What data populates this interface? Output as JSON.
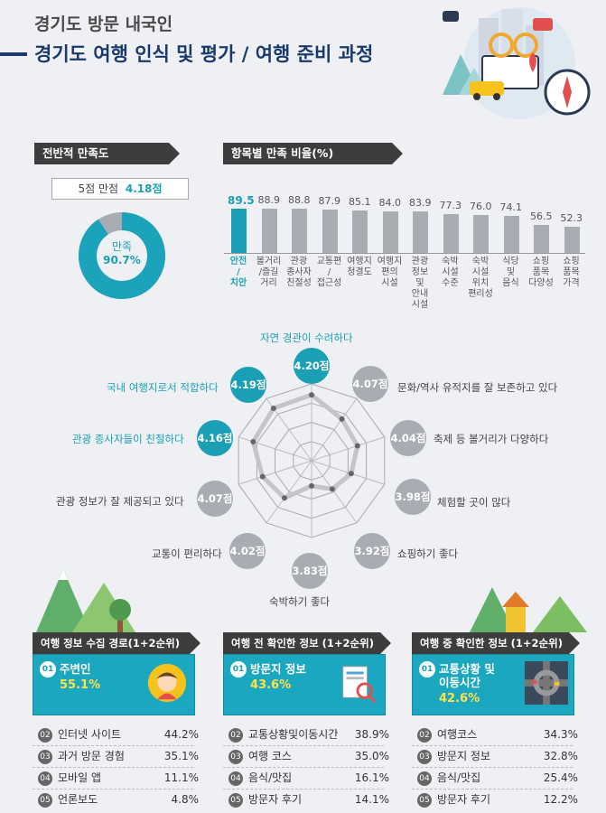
{
  "header": {
    "subtitle": "경기도 방문 내국인",
    "title": "경기도 여행 인식 및 평가 / 여행 준비 과정"
  },
  "overall": {
    "section_label": "전반적 만족도",
    "scale_text": "5점 만점",
    "score_text": "4.18점",
    "donut_label": "만족",
    "donut_value_text": "90.7%",
    "donut_value": 90.7
  },
  "item_section_label": "항목별 만족 비율(%)",
  "chart_data": [
    {
      "type": "bar",
      "title": "항목별 만족 비율(%)",
      "categories": [
        "안전\n/\n치안",
        "볼거리\n/즐길\n거리",
        "관광\n종사자\n친절성",
        "교통편\n/\n접근성",
        "여행지\n청결도",
        "여행지\n편의\n시설",
        "관광\n정보\n및\n안내\n시설",
        "숙박\n시설\n수준",
        "숙박\n시설\n위치\n편리성",
        "식당\n및\n음식",
        "쇼핑\n품목\n다양성",
        "쇼핑\n품목\n가격"
      ],
      "values": [
        89.5,
        88.9,
        88.8,
        87.9,
        85.1,
        84.0,
        83.9,
        77.3,
        76.0,
        74.1,
        56.5,
        52.3
      ],
      "value_labels": [
        "89.5",
        "88.9",
        "88.8",
        "87.9",
        "85.1",
        "84.0",
        "83.9",
        "77.3",
        "76.0",
        "74.1",
        "56.5",
        "52.3"
      ],
      "highlight_color": "#1a9fb5",
      "bar_color": "#a9acb2"
    },
    {
      "type": "radar",
      "axes": [
        "자연 경관이 수려하다",
        "문화/역사 유적지를 잘 보존하고 있다",
        "축제 등 볼거리가 다양하다",
        "체험할 곳이 많다",
        "쇼핑하기 좋다",
        "숙박하기 좋다",
        "교통이 편리하다",
        "관광 정보가 잘 제공되고 있다",
        "관광 종사자들이 친절하다",
        "국내 여행지로서 적합하다"
      ],
      "values": [
        4.2,
        4.07,
        4.04,
        3.98,
        3.92,
        3.83,
        4.02,
        4.07,
        4.16,
        4.19
      ],
      "value_labels": [
        "4.20점",
        "4.07점",
        "4.04점",
        "3.98점",
        "3.92점",
        "3.83점",
        "4.02점",
        "4.07점",
        "4.16점",
        "4.19점"
      ],
      "highlighted": [
        true,
        false,
        false,
        false,
        false,
        false,
        false,
        false,
        true,
        true
      ],
      "range": [
        3.6,
        4.3
      ]
    }
  ],
  "panels": [
    {
      "title": "여행 정보 수집 경로(1+2순위)",
      "top_rank": "01",
      "top_label": "주변인",
      "top_value": "55.1%",
      "rows": [
        {
          "rank": "02",
          "label": "인터넷 사이트",
          "pct": "44.2%"
        },
        {
          "rank": "03",
          "label": "과거 방문 경험",
          "pct": "35.1%"
        },
        {
          "rank": "04",
          "label": "모바일 앱",
          "pct": "11.1%"
        },
        {
          "rank": "05",
          "label": "언론보도",
          "pct": "4.8%"
        }
      ]
    },
    {
      "title": "여행 전 확인한 정보 (1+2순위)",
      "top_rank": "01",
      "top_label": "방문지 정보",
      "top_value": "43.6%",
      "rows": [
        {
          "rank": "02",
          "label": "교통상황및이동시간",
          "pct": "38.9%"
        },
        {
          "rank": "03",
          "label": "여행 코스",
          "pct": "35.0%"
        },
        {
          "rank": "04",
          "label": "음식/맛집",
          "pct": "16.1%"
        },
        {
          "rank": "05",
          "label": "방문자 후기",
          "pct": "14.1%"
        }
      ]
    },
    {
      "title": "여행 중 확인한 정보 (1+2순위)",
      "top_rank": "01",
      "top_label": "교통상황 및\n이동시간",
      "top_value": "42.6%",
      "rows": [
        {
          "rank": "02",
          "label": "여행코스",
          "pct": "34.3%"
        },
        {
          "rank": "03",
          "label": "방문지 정보",
          "pct": "32.8%"
        },
        {
          "rank": "04",
          "label": "음식/맛집",
          "pct": "25.4%"
        },
        {
          "rank": "05",
          "label": "방문자 후기",
          "pct": "12.2%"
        }
      ]
    }
  ],
  "icons": [
    "city-illustration-icon",
    "person-avatar-icon",
    "magnifier-document-icon",
    "interchange-road-icon",
    "mountain-tree-icon"
  ]
}
